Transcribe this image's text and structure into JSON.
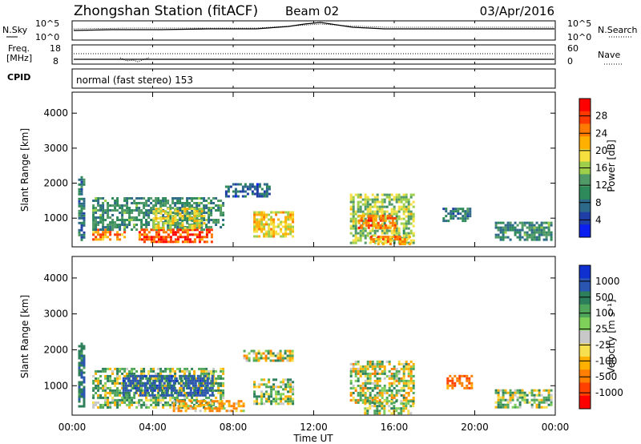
{
  "header": {
    "title": "Zhongshan Station (fitACF)",
    "beam": "Beam 02",
    "date": "03/Apr/2016"
  },
  "noise_panel": {
    "left_label": "N.Sky",
    "right_label": "N.Search",
    "tick_top": "10^5",
    "tick_bottom": "10^0"
  },
  "freq_panel": {
    "left_label_line1": "Freq.",
    "left_label_line2": "[MHz]",
    "right_label": "Nave",
    "left_tick_top": "18",
    "left_tick_bottom": "8",
    "right_tick_top": "60",
    "right_tick_bottom": "0"
  },
  "cpid_panel": {
    "label": "CPID",
    "value": "normal (fast stereo) 153"
  },
  "power_panel": {
    "ylabel": "Slant Range [km]",
    "colorbar_label": "Power [dB]",
    "colorbar_ticks": [
      "28",
      "24",
      "20",
      "16",
      "12",
      "8",
      "4"
    ],
    "colorbar_colors": [
      "#ff0000",
      "#ff3a00",
      "#ff7a00",
      "#ffb000",
      "#f5e040",
      "#9ecf4a",
      "#4f9a66",
      "#2e8a5a",
      "#2d6a8a",
      "#1f3fa6",
      "#0a1ff0"
    ]
  },
  "velocity_panel": {
    "ylabel": "Slant Range [km]",
    "colorbar_label": "Velocity [m s⁻¹]",
    "colorbar_ticks": [
      "1000",
      "500",
      "100",
      "25",
      "-25",
      "-100",
      "-500",
      "-1000"
    ],
    "colorbar_colors": [
      "#1030d0",
      "#2a55b0",
      "#2c7f5a",
      "#4fa65a",
      "#7fd05a",
      "#c8c8c8",
      "#f7e050",
      "#ffb000",
      "#ff8000",
      "#ff4000",
      "#ff0000"
    ]
  },
  "x_axis": {
    "label": "Time UT",
    "ticks": [
      "00:00",
      "04:00",
      "08:00",
      "12:00",
      "16:00",
      "20:00",
      "00:00"
    ]
  },
  "y_axis": {
    "ticks": [
      "1000",
      "2000",
      "3000",
      "4000"
    ]
  },
  "chart_data": {
    "type": "heatmap",
    "title": "Zhongshan Station (fitACF)",
    "xlabel": "Time UT",
    "ylabel": "Slant Range [km]",
    "xlim_hours": [
      0,
      24
    ],
    "ylim_km": [
      180,
      4600
    ],
    "panels": [
      {
        "name": "Power [dB]",
        "unit": "dB",
        "colorbar_ticks": [
          4,
          8,
          12,
          16,
          20,
          24,
          28
        ],
        "echo_regions": [
          {
            "t_start": 0.3,
            "t_end": 0.6,
            "r_min": 400,
            "r_max": 2200,
            "value": 8
          },
          {
            "t_start": 1.0,
            "t_end": 2.6,
            "r_min": 400,
            "r_max": 700,
            "value": 24
          },
          {
            "t_start": 1.0,
            "t_end": 7.5,
            "r_min": 700,
            "r_max": 1600,
            "value": 10
          },
          {
            "t_start": 3.3,
            "t_end": 7.0,
            "r_min": 300,
            "r_max": 700,
            "value": 28
          },
          {
            "t_start": 4.0,
            "t_end": 6.6,
            "r_min": 700,
            "r_max": 1300,
            "value": 18
          },
          {
            "t_start": 7.6,
            "t_end": 9.8,
            "r_min": 1600,
            "r_max": 2000,
            "value": 6
          },
          {
            "t_start": 9.0,
            "t_end": 11.0,
            "r_min": 500,
            "r_max": 1200,
            "value": 20
          },
          {
            "t_start": 13.8,
            "t_end": 17.0,
            "r_min": 300,
            "r_max": 1700,
            "value": 16
          },
          {
            "t_start": 14.2,
            "t_end": 16.0,
            "r_min": 700,
            "r_max": 1100,
            "value": 26
          },
          {
            "t_start": 14.8,
            "t_end": 16.8,
            "r_min": 250,
            "r_max": 500,
            "value": 24
          },
          {
            "t_start": 18.4,
            "t_end": 19.8,
            "r_min": 900,
            "r_max": 1300,
            "value": 8
          },
          {
            "t_start": 21.0,
            "t_end": 23.8,
            "r_min": 400,
            "r_max": 900,
            "value": 10
          }
        ]
      },
      {
        "name": "Velocity [m s-1]",
        "unit": "m s-1",
        "colorbar_ticks": [
          -1000,
          -500,
          -100,
          -25,
          25,
          100,
          500,
          1000
        ],
        "echo_regions": [
          {
            "t_start": 0.3,
            "t_end": 0.6,
            "r_min": 400,
            "r_max": 2200,
            "value": 400
          },
          {
            "t_start": 1.0,
            "t_end": 7.5,
            "r_min": 400,
            "r_max": 1500,
            "value": 80
          },
          {
            "t_start": 2.5,
            "t_end": 7.0,
            "r_min": 700,
            "r_max": 1300,
            "value": 600
          },
          {
            "t_start": 5.0,
            "t_end": 8.5,
            "r_min": 300,
            "r_max": 600,
            "value": -200
          },
          {
            "t_start": 9.0,
            "t_end": 11.0,
            "r_min": 500,
            "r_max": 1200,
            "value": 60
          },
          {
            "t_start": 8.5,
            "t_end": 11.0,
            "r_min": 1700,
            "r_max": 2000,
            "value": 0
          },
          {
            "t_start": 13.8,
            "t_end": 17.0,
            "r_min": 500,
            "r_max": 1700,
            "value": 0
          },
          {
            "t_start": 14.5,
            "t_end": 17.0,
            "r_min": 250,
            "r_max": 600,
            "value": 60
          },
          {
            "t_start": 18.6,
            "t_end": 19.8,
            "r_min": 900,
            "r_max": 1300,
            "value": -400
          },
          {
            "t_start": 21.0,
            "t_end": 23.8,
            "r_min": 400,
            "r_max": 900,
            "value": 90
          }
        ]
      }
    ]
  }
}
